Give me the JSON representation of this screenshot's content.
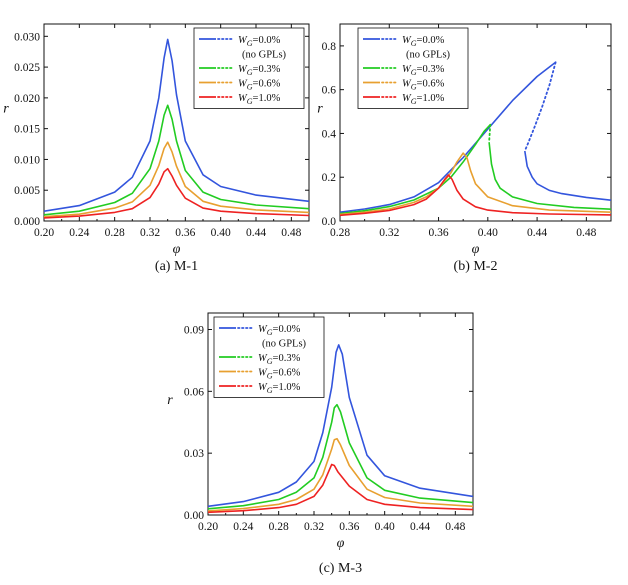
{
  "chart_data": [
    {
      "id": "a",
      "type": "line",
      "caption": "(a) M-1",
      "xlabel": "φ",
      "ylabel": "r",
      "xlim": [
        0.2,
        0.5
      ],
      "ylim": [
        0,
        0.032
      ],
      "xticks": [
        "0.20",
        "0.24",
        "0.28",
        "0.32",
        "0.36",
        "0.40",
        "0.44",
        "0.48"
      ],
      "yticks": [
        "0.000",
        "0.005",
        "0.010",
        "0.015",
        "0.020",
        "0.025",
        "0.030"
      ],
      "legend_position": "top-right",
      "series": [
        {
          "label": "=0.0%",
          "sub": "(no GPLs)",
          "color": "#3355dd",
          "x": [
            0.2,
            0.24,
            0.28,
            0.3,
            0.32,
            0.33,
            0.336,
            0.34,
            0.345,
            0.35,
            0.36,
            0.38,
            0.4,
            0.44,
            0.5
          ],
          "y": [
            0.0016,
            0.0025,
            0.0047,
            0.0071,
            0.013,
            0.02,
            0.0265,
            0.0295,
            0.026,
            0.0205,
            0.013,
            0.0075,
            0.0056,
            0.0042,
            0.0032
          ]
        },
        {
          "label": "=0.3%",
          "color": "#22cc22",
          "x": [
            0.2,
            0.24,
            0.28,
            0.3,
            0.32,
            0.33,
            0.336,
            0.34,
            0.345,
            0.35,
            0.36,
            0.38,
            0.4,
            0.44,
            0.5
          ],
          "y": [
            0.001,
            0.0016,
            0.003,
            0.0045,
            0.0085,
            0.013,
            0.0172,
            0.0188,
            0.0165,
            0.013,
            0.0082,
            0.0047,
            0.0035,
            0.0026,
            0.002
          ]
        },
        {
          "label": "=0.6%",
          "color": "#e8a030",
          "x": [
            0.2,
            0.24,
            0.28,
            0.3,
            0.32,
            0.33,
            0.336,
            0.34,
            0.345,
            0.35,
            0.36,
            0.38,
            0.4,
            0.44,
            0.5
          ],
          "y": [
            0.0007,
            0.0011,
            0.0021,
            0.0031,
            0.0058,
            0.009,
            0.0118,
            0.0128,
            0.0112,
            0.0089,
            0.0056,
            0.0032,
            0.0024,
            0.0018,
            0.0014
          ]
        },
        {
          "label": "=1.0%",
          "color": "#ee2222",
          "x": [
            0.2,
            0.24,
            0.28,
            0.3,
            0.32,
            0.33,
            0.336,
            0.34,
            0.345,
            0.35,
            0.36,
            0.38,
            0.4,
            0.44,
            0.5
          ],
          "y": [
            0.0005,
            0.0008,
            0.0014,
            0.002,
            0.0038,
            0.006,
            0.008,
            0.0085,
            0.0073,
            0.0058,
            0.0037,
            0.0021,
            0.0016,
            0.0012,
            0.0009
          ]
        }
      ]
    },
    {
      "id": "b",
      "type": "line",
      "caption": "(b) M-2",
      "xlabel": "φ",
      "ylabel": "r",
      "xlim": [
        0.28,
        0.5
      ],
      "ylim": [
        0,
        0.9
      ],
      "xticks": [
        "0.28",
        "0.32",
        "0.36",
        "0.40",
        "0.44",
        "0.48"
      ],
      "yticks": [
        "0.0",
        "0.2",
        "0.4",
        "0.6",
        "0.8"
      ],
      "legend_position": "top-left",
      "series": [
        {
          "label": "=0.0%",
          "sub": "(no GPLs)",
          "color": "#3355dd",
          "x": [
            0.28,
            0.3,
            0.32,
            0.34,
            0.36,
            0.38,
            0.4,
            0.42,
            0.44,
            0.455
          ],
          "y": [
            0.04,
            0.055,
            0.075,
            0.11,
            0.175,
            0.29,
            0.42,
            0.55,
            0.66,
            0.725
          ],
          "unstable_x": [
            0.455,
            0.45,
            0.444,
            0.438,
            0.433,
            0.43
          ],
          "unstable_y": [
            0.725,
            0.62,
            0.52,
            0.43,
            0.36,
            0.32
          ],
          "lower_x": [
            0.43,
            0.432,
            0.436,
            0.44,
            0.45,
            0.46,
            0.48,
            0.5
          ],
          "lower_y": [
            0.32,
            0.25,
            0.2,
            0.17,
            0.14,
            0.125,
            0.108,
            0.095
          ]
        },
        {
          "label": "=0.3%",
          "color": "#22cc22",
          "x": [
            0.28,
            0.3,
            0.32,
            0.34,
            0.36,
            0.37,
            0.38,
            0.39,
            0.397,
            0.402
          ],
          "y": [
            0.034,
            0.047,
            0.066,
            0.096,
            0.15,
            0.2,
            0.27,
            0.35,
            0.41,
            0.44
          ],
          "unstable_x": [
            0.402,
            0.4015,
            0.401
          ],
          "unstable_y": [
            0.44,
            0.4,
            0.36
          ],
          "lower_x": [
            0.401,
            0.403,
            0.406,
            0.41,
            0.42,
            0.44,
            0.47,
            0.5
          ],
          "lower_y": [
            0.36,
            0.26,
            0.19,
            0.15,
            0.11,
            0.08,
            0.062,
            0.054
          ]
        },
        {
          "label": "=0.6%",
          "color": "#e8a030",
          "x": [
            0.28,
            0.3,
            0.32,
            0.34,
            0.35,
            0.36,
            0.37,
            0.375,
            0.38,
            0.383,
            0.386,
            0.39,
            0.4,
            0.42,
            0.45,
            0.5
          ],
          "y": [
            0.03,
            0.04,
            0.055,
            0.085,
            0.11,
            0.15,
            0.22,
            0.27,
            0.31,
            0.29,
            0.23,
            0.17,
            0.11,
            0.07,
            0.05,
            0.04
          ]
        },
        {
          "label": "=1.0%",
          "color": "#ee2222",
          "x": [
            0.28,
            0.3,
            0.32,
            0.34,
            0.35,
            0.36,
            0.365,
            0.368,
            0.371,
            0.375,
            0.38,
            0.39,
            0.4,
            0.42,
            0.45,
            0.5
          ],
          "y": [
            0.026,
            0.035,
            0.048,
            0.075,
            0.1,
            0.15,
            0.19,
            0.21,
            0.19,
            0.14,
            0.1,
            0.065,
            0.05,
            0.038,
            0.032,
            0.028
          ]
        }
      ]
    },
    {
      "id": "c",
      "type": "line",
      "caption": "(c) M-3",
      "xlabel": "φ",
      "ylabel": "r",
      "xlim": [
        0.2,
        0.5
      ],
      "ylim": [
        0,
        0.098
      ],
      "xticks": [
        "0.20",
        "0.24",
        "0.28",
        "0.32",
        "0.36",
        "0.40",
        "0.44",
        "0.48"
      ],
      "yticks": [
        "0.00",
        "0.03",
        "0.06",
        "0.09"
      ],
      "legend_position": "top-left",
      "series": [
        {
          "label": "=0.0%",
          "sub": "(no GPLs)",
          "color": "#3355dd",
          "x": [
            0.2,
            0.24,
            0.28,
            0.3,
            0.32,
            0.33,
            0.34,
            0.345,
            0.348,
            0.352,
            0.36,
            0.38,
            0.4,
            0.44,
            0.5
          ],
          "y": [
            0.0042,
            0.0065,
            0.011,
            0.016,
            0.026,
            0.04,
            0.062,
            0.079,
            0.0825,
            0.078,
            0.057,
            0.029,
            0.019,
            0.013,
            0.009
          ]
        },
        {
          "label": "=0.3%",
          "color": "#22cc22",
          "x": [
            0.2,
            0.24,
            0.28,
            0.3,
            0.32,
            0.33,
            0.34,
            0.343,
            0.346,
            0.35,
            0.36,
            0.38,
            0.4,
            0.44,
            0.5
          ],
          "y": [
            0.003,
            0.0045,
            0.0075,
            0.011,
            0.018,
            0.028,
            0.045,
            0.052,
            0.0535,
            0.05,
            0.035,
            0.018,
            0.012,
            0.0082,
            0.006
          ]
        },
        {
          "label": "=0.6%",
          "color": "#e8a030",
          "x": [
            0.2,
            0.24,
            0.28,
            0.3,
            0.32,
            0.33,
            0.34,
            0.343,
            0.346,
            0.35,
            0.36,
            0.38,
            0.4,
            0.44,
            0.5
          ],
          "y": [
            0.002,
            0.0031,
            0.0052,
            0.0075,
            0.0125,
            0.0195,
            0.032,
            0.0365,
            0.037,
            0.034,
            0.024,
            0.0125,
            0.0085,
            0.0058,
            0.0042
          ]
        },
        {
          "label": "=1.0%",
          "color": "#ee2222",
          "x": [
            0.2,
            0.24,
            0.28,
            0.3,
            0.32,
            0.33,
            0.337,
            0.34,
            0.343,
            0.347,
            0.36,
            0.38,
            0.4,
            0.44,
            0.5
          ],
          "y": [
            0.0013,
            0.0021,
            0.0036,
            0.0052,
            0.009,
            0.0145,
            0.0215,
            0.0245,
            0.024,
            0.021,
            0.014,
            0.0075,
            0.0052,
            0.0036,
            0.0026
          ]
        }
      ]
    }
  ],
  "legend_prefix": "W",
  "legend_prefix_sub": "G"
}
